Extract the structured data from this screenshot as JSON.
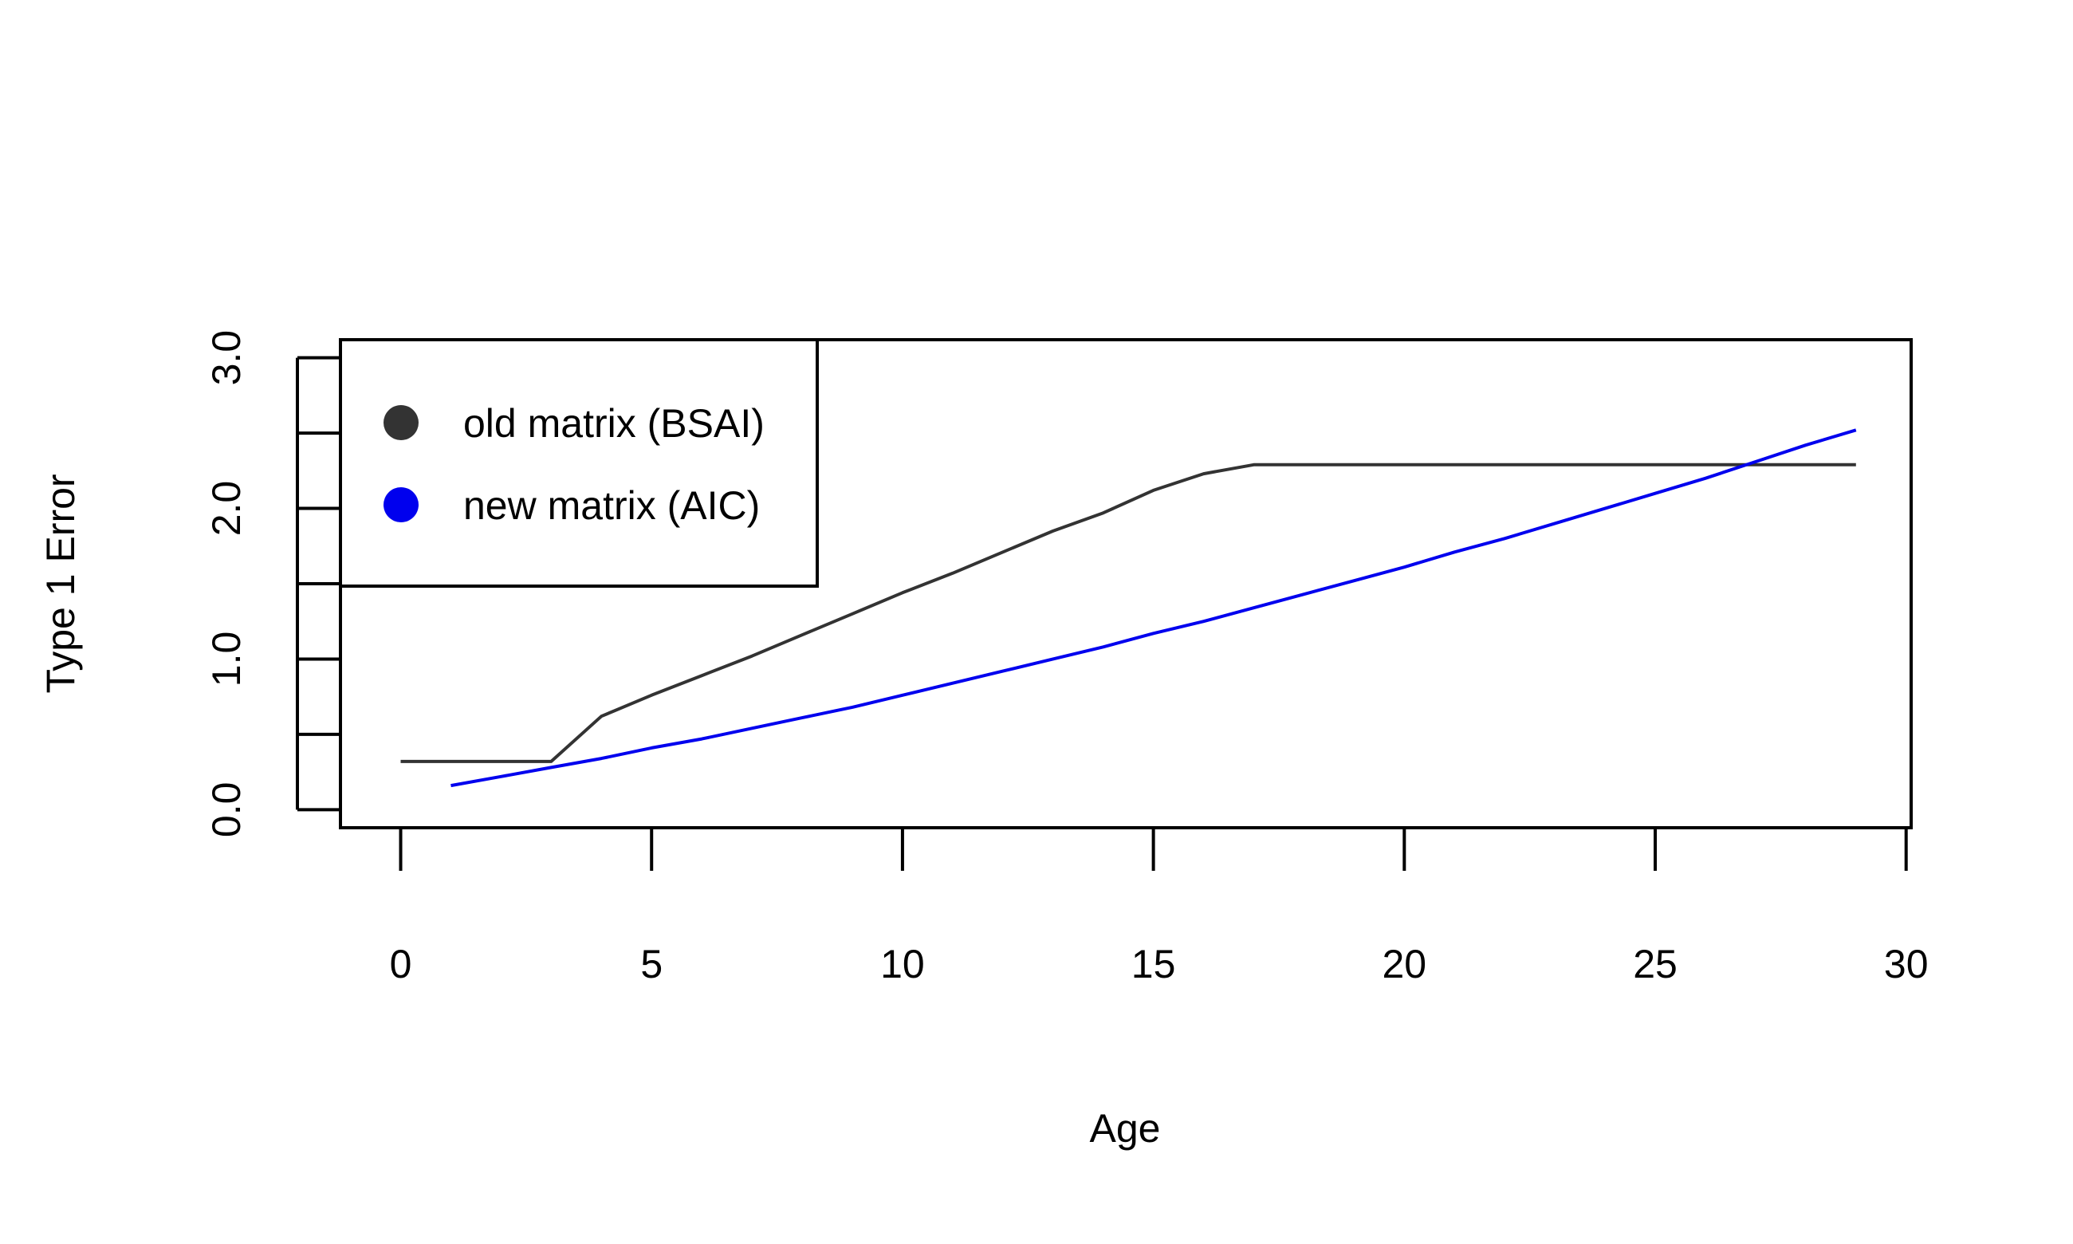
{
  "chart_data": {
    "type": "line",
    "title": "",
    "xlabel": "Age",
    "ylabel": "Type 1 Error",
    "xlim": [
      -1.2,
      30.1
    ],
    "ylim": [
      -0.12,
      3.12
    ],
    "x_ticks": [
      0,
      5,
      10,
      15,
      20,
      25,
      30
    ],
    "x_tick_labels": [
      "0",
      "5",
      "10",
      "15",
      "20",
      "25",
      "30"
    ],
    "y_ticks": [
      0,
      0.5,
      1,
      1.5,
      2,
      2.5,
      3
    ],
    "y_tick_labels": [
      "0.0",
      "",
      "1.0",
      "",
      "2.0",
      "",
      "3.0"
    ],
    "grid": false,
    "legend": {
      "placement": "top-left",
      "marker": "dot"
    },
    "series": [
      {
        "name": "old matrix (BSAI)",
        "color": "#333333",
        "x": [
          0,
          1,
          2,
          3,
          4,
          5,
          6,
          7,
          8,
          9,
          10,
          11,
          12,
          13,
          14,
          15,
          16,
          17,
          18,
          19,
          20,
          21,
          22,
          23,
          24,
          25,
          26,
          27,
          28,
          29
        ],
        "y": [
          0.32,
          0.32,
          0.32,
          0.32,
          0.62,
          0.76,
          0.89,
          1.02,
          1.16,
          1.3,
          1.44,
          1.57,
          1.71,
          1.85,
          1.97,
          2.12,
          2.23,
          2.29,
          2.29,
          2.29,
          2.29,
          2.29,
          2.29,
          2.29,
          2.29,
          2.29,
          2.29,
          2.29,
          2.29,
          2.29
        ]
      },
      {
        "name": "new matrix (AIC)",
        "color": "#0000ee",
        "x": [
          1,
          2,
          3,
          4,
          5,
          6,
          7,
          8,
          9,
          10,
          11,
          12,
          13,
          14,
          15,
          16,
          17,
          18,
          19,
          20,
          21,
          22,
          23,
          24,
          25,
          26,
          27,
          28,
          29
        ],
        "y": [
          0.16,
          0.22,
          0.28,
          0.34,
          0.41,
          0.47,
          0.54,
          0.61,
          0.68,
          0.76,
          0.84,
          0.92,
          1.0,
          1.08,
          1.17,
          1.25,
          1.34,
          1.43,
          1.52,
          1.61,
          1.71,
          1.8,
          1.9,
          2.0,
          2.1,
          2.2,
          2.31,
          2.42,
          2.52
        ]
      }
    ]
  }
}
